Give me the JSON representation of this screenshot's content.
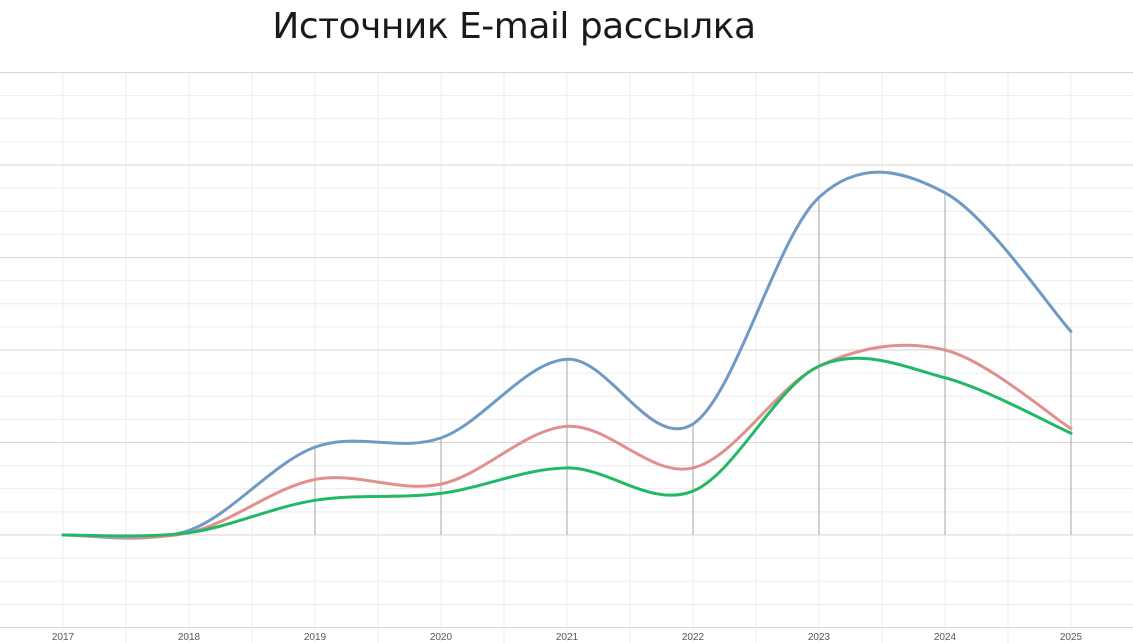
{
  "chart_data": {
    "type": "line",
    "title": "Источник E-mail рассылка",
    "xlabel": "",
    "ylabel": "",
    "x": [
      "2017",
      "2018",
      "2019",
      "2020",
      "2021",
      "2022",
      "2023",
      "2024",
      "2025"
    ],
    "ylim": [
      -2,
      10
    ],
    "grid": true,
    "legend": "none",
    "smooth": true,
    "series": [
      {
        "color": "#6e9bc5",
        "values": [
          0,
          0.1,
          1.9,
          2.1,
          3.8,
          2.4,
          7.3,
          7.4,
          4.4
        ]
      },
      {
        "color": "#e28f8f",
        "values": [
          0,
          0.05,
          1.2,
          1.1,
          2.35,
          1.45,
          3.65,
          4.0,
          2.3
        ]
      },
      {
        "color": "#22b865",
        "values": [
          0,
          0.05,
          0.75,
          0.9,
          1.45,
          0.95,
          3.65,
          3.4,
          2.2
        ]
      }
    ]
  }
}
